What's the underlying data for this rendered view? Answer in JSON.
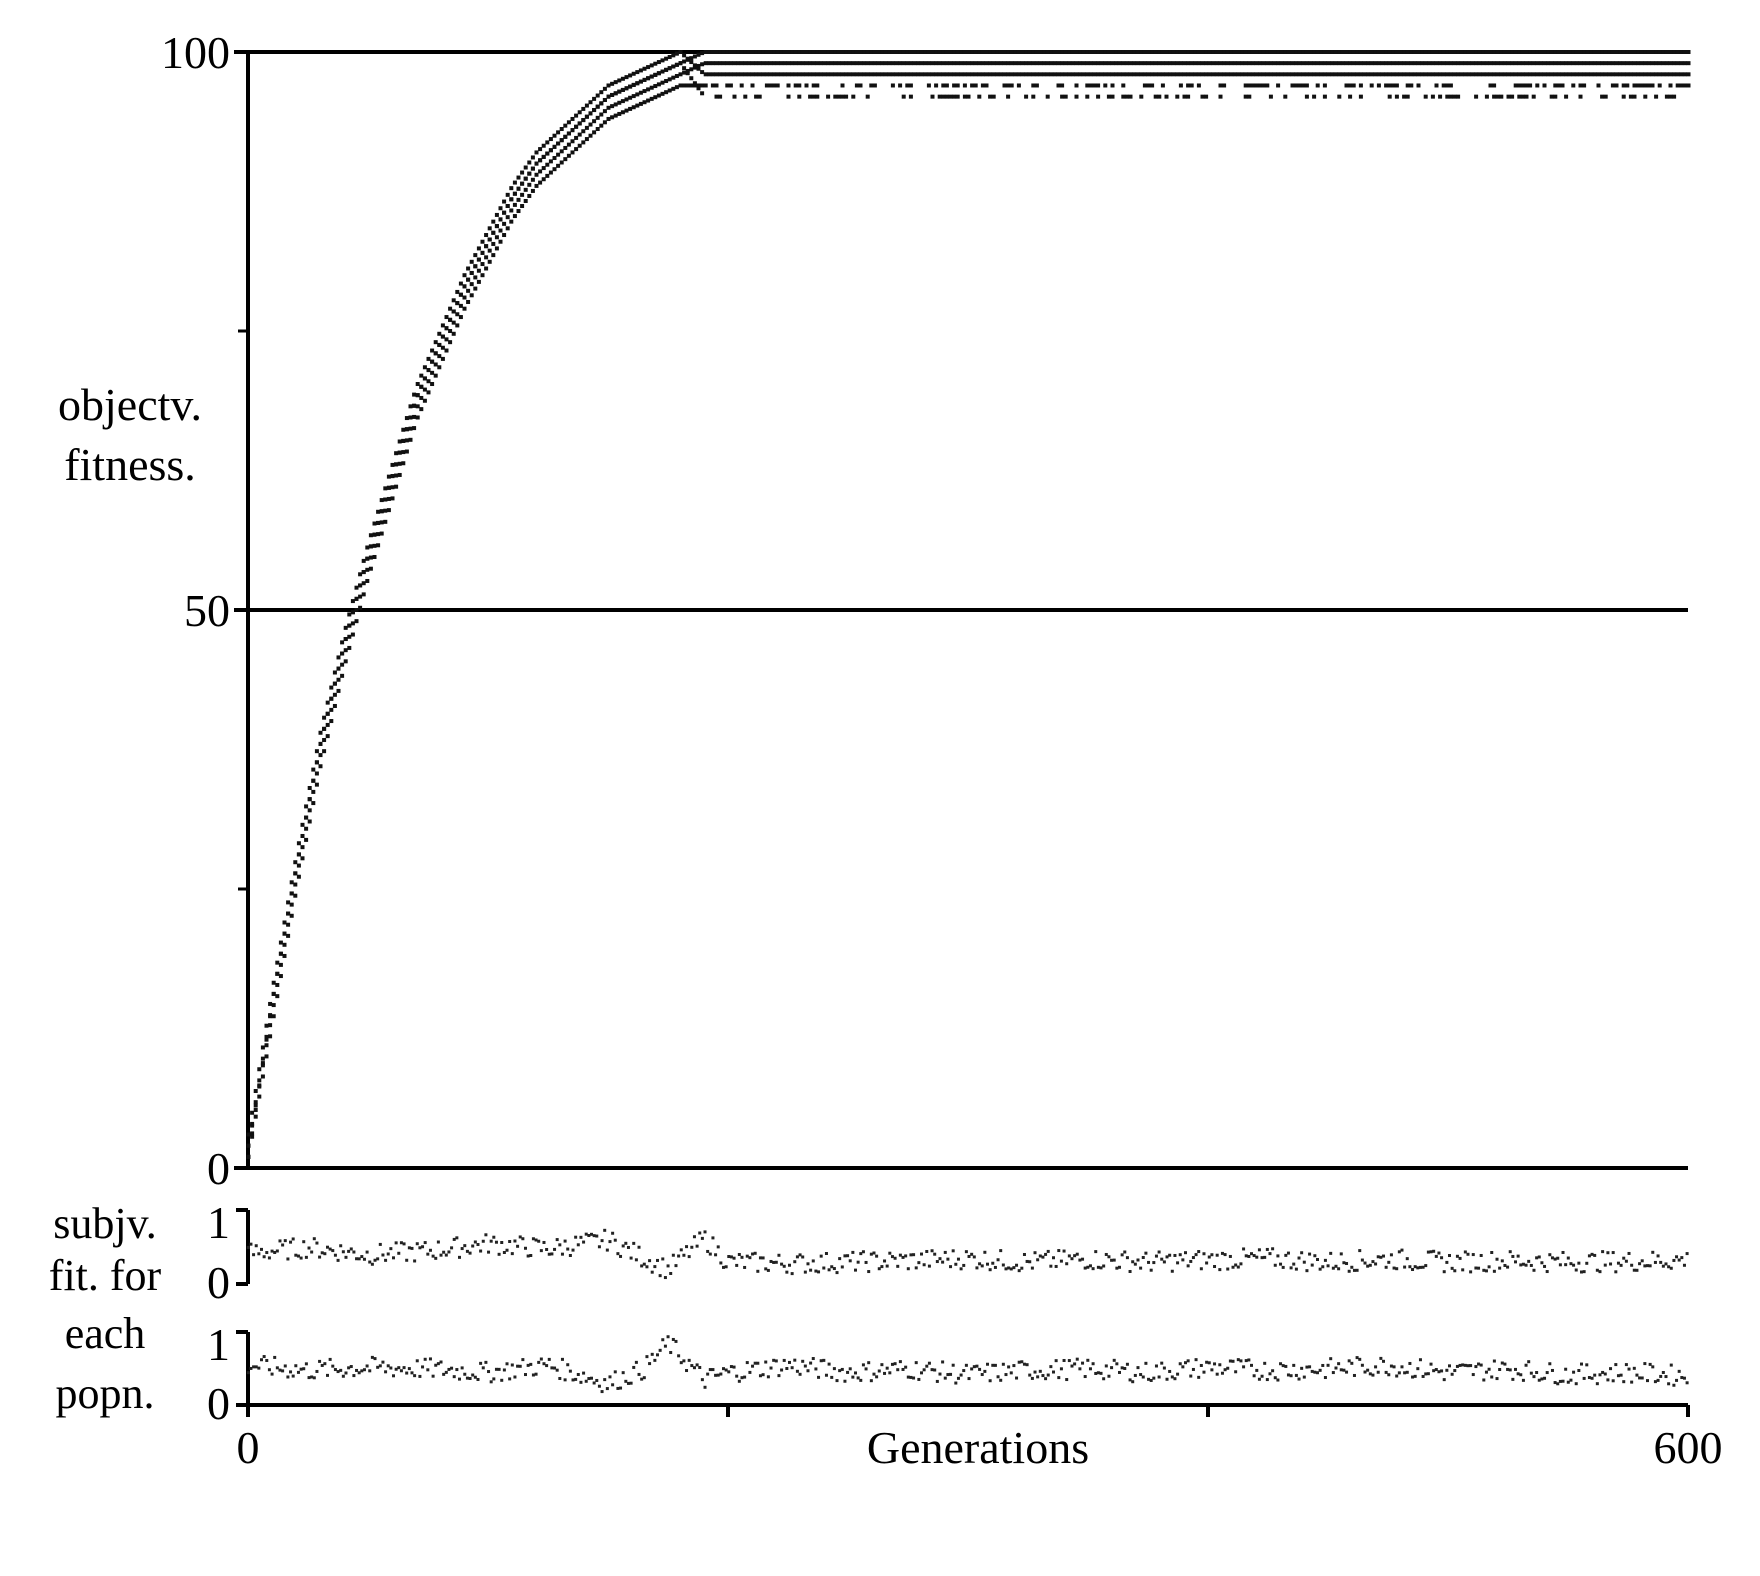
{
  "chart_data": [
    {
      "type": "scatter",
      "panel": "objective-fitness",
      "ylabel": [
        "objectv.",
        "fitness."
      ],
      "ylim": [
        0,
        100
      ],
      "y_ticks": [
        0,
        50,
        100
      ],
      "y_minor_ticks": [
        25,
        75
      ],
      "y_tick_labels": [
        "0",
        "50",
        "100"
      ],
      "reference_lines": [
        0,
        50,
        100
      ],
      "xlim": [
        0,
        600
      ],
      "population_size": 5,
      "series": [
        {
          "name": "",
          "description_points": "population members per generation (five values per generation)",
          "x": [
            0,
            10,
            20,
            30,
            40,
            50,
            60,
            70,
            80,
            90,
            100,
            110,
            120,
            130,
            140,
            150,
            160,
            170,
            180,
            190,
            200,
            250,
            300,
            350,
            400,
            450,
            500,
            550,
            600
          ],
          "values_per_generation": [
            [
              1,
              2,
              3,
              1,
              2
            ],
            [
              15,
              14,
              16,
              13,
              15
            ],
            [
              27,
              26,
              28,
              25,
              27
            ],
            [
              38,
              37,
              39,
              36,
              38
            ],
            [
              47,
              46,
              48,
              45,
              47
            ],
            [
              55,
              54,
              56,
              53,
              55
            ],
            [
              62,
              61,
              63,
              60,
              62
            ],
            [
              69,
              68,
              70,
              67,
              69
            ],
            [
              74,
              73,
              75,
              72,
              74
            ],
            [
              79,
              78,
              80,
              77,
              79
            ],
            [
              83,
              82,
              84,
              81,
              83
            ],
            [
              87,
              86,
              88,
              85,
              87
            ],
            [
              90,
              89,
              91,
              88,
              90
            ],
            [
              92,
              91,
              93,
              90,
              92
            ],
            [
              94,
              93,
              95,
              92,
              94
            ],
            [
              96,
              95,
              97,
              94,
              96
            ],
            [
              97,
              96,
              98,
              95,
              97
            ],
            [
              98,
              97,
              99,
              96,
              98
            ],
            [
              99,
              98,
              100,
              97,
              99
            ],
            [
              100,
              99,
              98,
              97,
              96
            ],
            [
              100,
              99,
              98,
              97,
              96
            ],
            [
              100,
              99,
              98,
              97,
              96
            ],
            [
              100,
              99,
              98,
              97,
              96
            ],
            [
              100,
              99,
              98,
              97,
              96
            ],
            [
              100,
              99,
              98,
              97,
              96
            ],
            [
              100,
              99,
              98,
              97,
              96
            ],
            [
              100,
              99,
              98,
              97,
              96
            ],
            [
              100,
              99,
              98,
              97,
              96
            ],
            [
              100,
              99,
              98,
              97,
              96
            ]
          ]
        }
      ],
      "grid": false
    },
    {
      "type": "scatter",
      "panel": "subjective-fitness-population-1",
      "ylim": [
        0,
        1
      ],
      "y_tick_labels": [
        "0",
        "1"
      ],
      "x": [
        0,
        25,
        50,
        75,
        100,
        125,
        150,
        165,
        175,
        190,
        200,
        225,
        250,
        275,
        300,
        325,
        350,
        375,
        400,
        425,
        450,
        475,
        500,
        525,
        550,
        575,
        600
      ],
      "values": [
        0.42,
        0.5,
        0.4,
        0.45,
        0.55,
        0.48,
        0.6,
        0.35,
        0.2,
        0.62,
        0.3,
        0.28,
        0.3,
        0.32,
        0.35,
        0.3,
        0.34,
        0.3,
        0.33,
        0.35,
        0.3,
        0.34,
        0.3,
        0.32,
        0.3,
        0.31,
        0.33
      ]
    },
    {
      "type": "scatter",
      "panel": "subjective-fitness-population-2",
      "ylim": [
        0,
        1
      ],
      "y_tick_labels": [
        "0",
        "1"
      ],
      "x": [
        0,
        25,
        50,
        75,
        100,
        125,
        150,
        165,
        175,
        190,
        200,
        225,
        250,
        275,
        300,
        325,
        350,
        375,
        400,
        425,
        450,
        475,
        500,
        525,
        550,
        575,
        600
      ],
      "values": [
        0.55,
        0.48,
        0.52,
        0.5,
        0.45,
        0.55,
        0.3,
        0.5,
        0.85,
        0.35,
        0.45,
        0.55,
        0.45,
        0.5,
        0.42,
        0.48,
        0.5,
        0.45,
        0.52,
        0.48,
        0.5,
        0.55,
        0.45,
        0.5,
        0.42,
        0.45,
        0.4
      ]
    }
  ],
  "shared": {
    "side_label": [
      "subjv.",
      "fit. for",
      "each",
      "popn."
    ],
    "xlabel": "Generations",
    "x_tick_labels": [
      "0",
      "600"
    ],
    "x_ticks": [
      0,
      200,
      400,
      600
    ]
  }
}
